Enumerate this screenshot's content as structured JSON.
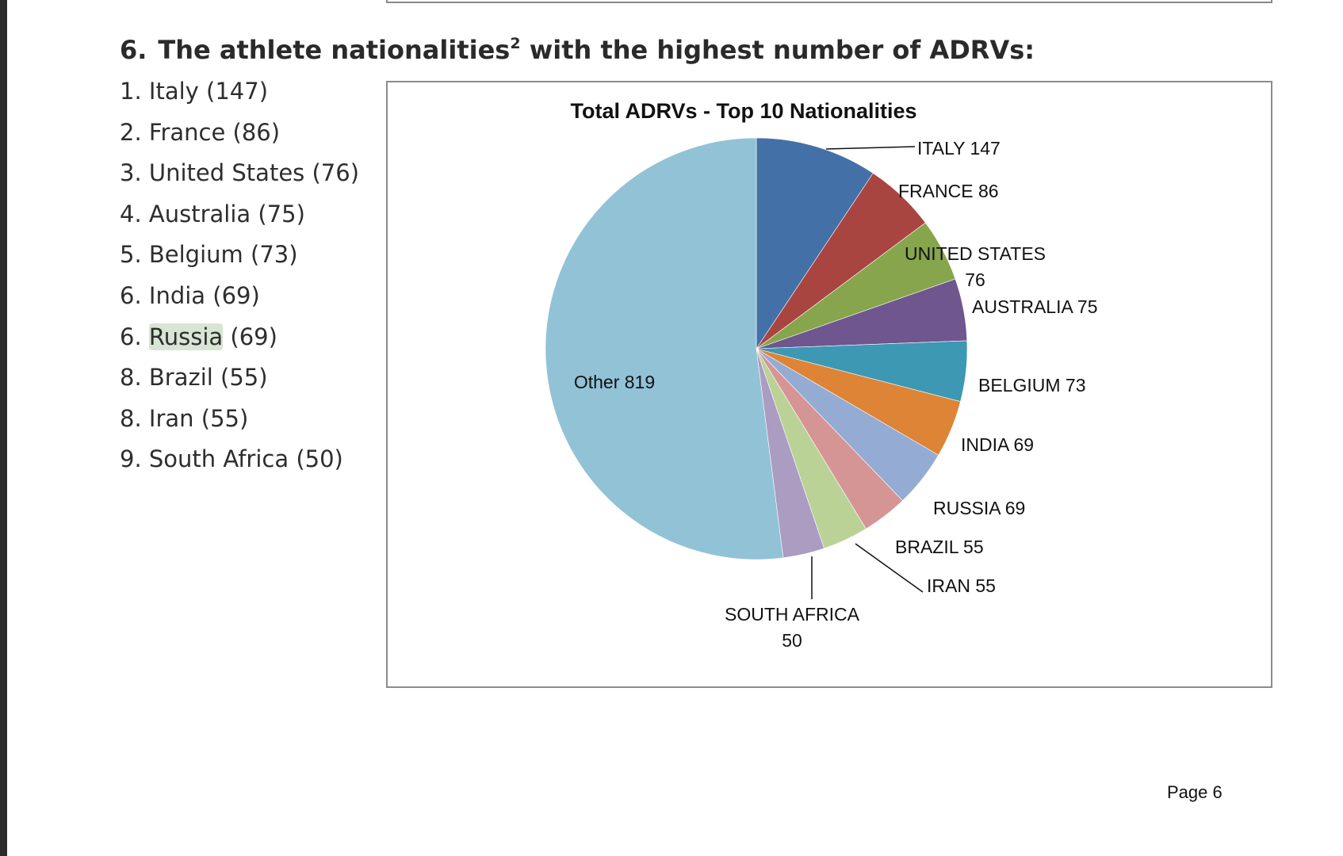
{
  "heading": {
    "number": "6.",
    "text": "The athlete nationalities",
    "footnote": "2",
    "text_after": " with the highest number of ADRVs:"
  },
  "ranking": [
    {
      "rank": "1.",
      "country": "Italy",
      "count": "(147)"
    },
    {
      "rank": "2.",
      "country": "France",
      "count": "(86)"
    },
    {
      "rank": "3.",
      "country": "United States",
      "count": "(76)"
    },
    {
      "rank": "4.",
      "country": "Australia",
      "count": "(75)"
    },
    {
      "rank": "5.",
      "country": "Belgium",
      "count": "(73)"
    },
    {
      "rank": "6.",
      "country": "India",
      "count": "(69)"
    },
    {
      "rank": "6.",
      "country": "Russia",
      "count": "(69)",
      "highlighted": true
    },
    {
      "rank": "8.",
      "country": "Brazil",
      "count": "(55)"
    },
    {
      "rank": "8.",
      "country": "Iran",
      "count": "(55)"
    },
    {
      "rank": "9.",
      "country": "South Africa",
      "count": "(50)"
    }
  ],
  "chart_data": {
    "type": "pie",
    "title": "Total ADRVs - Top 10 Nationalities",
    "start": "12 o'clock, clockwise",
    "slices": [
      {
        "label": "ITALY",
        "value": 147,
        "color": "#4470a8"
      },
      {
        "label": "FRANCE",
        "value": 86,
        "color": "#a94541"
      },
      {
        "label": "UNITED STATES",
        "value": 76,
        "color": "#87a54c"
      },
      {
        "label": "AUSTRALIA",
        "value": 75,
        "color": "#6f568e"
      },
      {
        "label": "BELGIUM",
        "value": 73,
        "color": "#3c98b3"
      },
      {
        "label": "INDIA",
        "value": 69,
        "color": "#dd8436"
      },
      {
        "label": "RUSSIA",
        "value": 69,
        "color": "#94abd3"
      },
      {
        "label": "BRAZIL",
        "value": 55,
        "color": "#d59594"
      },
      {
        "label": "IRAN",
        "value": 55,
        "color": "#bbd297"
      },
      {
        "label": "SOUTH AFRICA",
        "value": 50,
        "color": "#ab9cc1"
      },
      {
        "label": "Other",
        "value": 819,
        "color": "#92c2d6"
      }
    ]
  },
  "page_number": "Page 6"
}
